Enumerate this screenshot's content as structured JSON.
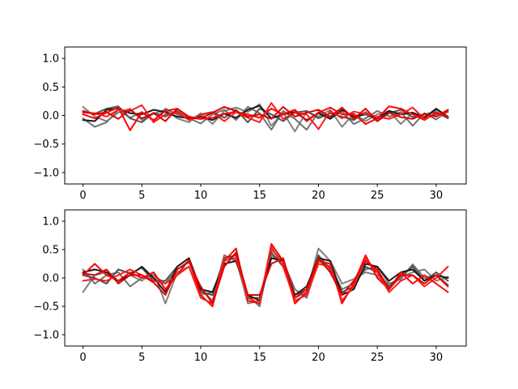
{
  "chart_data": [
    {
      "type": "line",
      "title": "",
      "xlabel": "",
      "ylabel": "",
      "xlim": [
        -1.55,
        32.55
      ],
      "ylim": [
        -1.2,
        1.2
      ],
      "xticks": [
        0,
        5,
        10,
        15,
        20,
        25,
        30
      ],
      "yticks": [
        1.0,
        0.5,
        0.0,
        -0.5,
        -1.0
      ],
      "xtick_labels": [
        "0",
        "5",
        "10",
        "15",
        "20",
        "25",
        "30"
      ],
      "ytick_labels": [
        "1.0",
        "0.5",
        "0.0",
        "−0.5",
        "−1.0"
      ],
      "grid": false,
      "x": [
        0,
        1,
        2,
        3,
        4,
        5,
        6,
        7,
        8,
        9,
        10,
        11,
        12,
        13,
        14,
        15,
        16,
        17,
        18,
        19,
        20,
        21,
        22,
        23,
        24,
        25,
        26,
        27,
        28,
        29,
        30,
        31
      ],
      "series": [
        {
          "color": "#808080",
          "values": [
            0.15,
            -0.02,
            -0.1,
            0.05,
            0.12,
            -0.08,
            0.03,
            0.1,
            -0.05,
            -0.12,
            0.04,
            -0.15,
            0.08,
            0.14,
            0.06,
            0.2,
            -0.18,
            0.05,
            -0.28,
            0.07,
            -0.02,
            0.1,
            -0.2,
            0.03,
            -0.1,
            0.02,
            0.08,
            -0.15,
            0.05,
            -0.02,
            0.1,
            -0.04
          ]
        },
        {
          "color": "#707070",
          "values": [
            -0.05,
            -0.2,
            -0.12,
            0.1,
            -0.04,
            0.06,
            -0.1,
            0.12,
            0.02,
            -0.05,
            -0.14,
            0.02,
            0.1,
            -0.08,
            0.15,
            0.04,
            -0.25,
            0.08,
            -0.06,
            -0.25,
            0.06,
            -0.04,
            0.07,
            -0.15,
            -0.05,
            0.08,
            -0.02,
            0.06,
            -0.18,
            0.04,
            -0.07,
            0.08
          ]
        },
        {
          "color": "#555555",
          "values": [
            0.06,
            0.03,
            0.12,
            0.16,
            -0.05,
            -0.12,
            0.05,
            -0.02,
            0.08,
            -0.08,
            0.02,
            0.06,
            -0.04,
            0.1,
            -0.12,
            0.12,
            0.02,
            -0.1,
            0.05,
            0.08,
            -0.05,
            0.04,
            -0.02,
            -0.08,
            0.06,
            -0.1,
            0.04,
            0.1,
            -0.03,
            0.02,
            0.06,
            -0.05
          ]
        },
        {
          "color": "#1a1a1a",
          "values": [
            -0.08,
            -0.1,
            0.1,
            0.12,
            0.04,
            0.02,
            0.1,
            0.06,
            -0.02,
            -0.05,
            -0.02,
            -0.08,
            0.03,
            -0.04,
            0.1,
            0.17,
            -0.05,
            0.02,
            0.06,
            -0.08,
            0.04,
            -0.06,
            0.1,
            -0.02,
            0.02,
            -0.06,
            0.08,
            0.02,
            0.05,
            -0.04,
            0.12,
            -0.02
          ]
        },
        {
          "color": "#ff0000",
          "values": [
            0.02,
            -0.05,
            0.05,
            0.14,
            -0.26,
            0.06,
            -0.08,
            0.08,
            0.12,
            -0.02,
            -0.06,
            -0.04,
            0.03,
            0.06,
            0.02,
            -0.04,
            0.12,
            0.02,
            0.1,
            -0.1,
            0.05,
            0.14,
            0.02,
            0.03,
            -0.15,
            -0.05,
            0.16,
            0.12,
            0.02,
            -0.08,
            0.05,
            -0.02
          ]
        },
        {
          "color": "#ff1a1a",
          "values": [
            0.05,
            0.04,
            -0.02,
            0.1,
            0.08,
            0.18,
            -0.12,
            0.02,
            0.05,
            -0.08,
            0.01,
            0.05,
            -0.1,
            0.06,
            -0.04,
            -0.12,
            0.22,
            -0.06,
            0.05,
            0.02,
            -0.24,
            0.08,
            -0.05,
            0.07,
            0.02,
            -0.02,
            -0.06,
            0.02,
            0.14,
            -0.06,
            0.02,
            0.06
          ]
        },
        {
          "color": "#e00000",
          "values": [
            0.08,
            0.02,
            0.06,
            -0.06,
            0.1,
            -0.05,
            0.04,
            -0.1,
            0.12,
            -0.04,
            -0.06,
            0.05,
            0.15,
            0.08,
            -0.02,
            0.02,
            -0.06,
            0.15,
            -0.02,
            0.05,
            0.1,
            -0.02,
            0.14,
            -0.06,
            0.12,
            -0.1,
            0.05,
            -0.03,
            -0.06,
            0.03,
            -0.02,
            0.1
          ]
        }
      ]
    },
    {
      "type": "line",
      "title": "",
      "xlabel": "",
      "ylabel": "",
      "xlim": [
        -1.55,
        32.55
      ],
      "ylim": [
        -1.2,
        1.2
      ],
      "xticks": [
        0,
        5,
        10,
        15,
        20,
        25,
        30
      ],
      "yticks": [
        1.0,
        0.5,
        0.0,
        -0.5,
        -1.0
      ],
      "xtick_labels": [
        "0",
        "5",
        "10",
        "15",
        "20",
        "25",
        "30"
      ],
      "ytick_labels": [
        "1.0",
        "0.5",
        "0.0",
        "−0.5",
        "−1.0"
      ],
      "grid": false,
      "x": [
        0,
        1,
        2,
        3,
        4,
        5,
        6,
        7,
        8,
        9,
        10,
        11,
        12,
        13,
        14,
        15,
        16,
        17,
        18,
        19,
        20,
        21,
        22,
        23,
        24,
        25,
        26,
        27,
        28,
        29,
        30,
        31
      ],
      "series": [
        {
          "color": "#808080",
          "values": [
            -0.25,
            0.05,
            0.1,
            -0.08,
            0.05,
            -0.05,
            0.1,
            -0.45,
            0.1,
            0.2,
            -0.3,
            -0.25,
            0.3,
            0.35,
            -0.45,
            -0.4,
            0.4,
            0.25,
            -0.35,
            -0.25,
            0.52,
            0.3,
            -0.1,
            -0.02,
            0.1,
            0.05,
            -0.18,
            0.02,
            0.1,
            0.15,
            -0.05,
            0.02
          ]
        },
        {
          "color": "#6e6e6e",
          "values": [
            0.15,
            -0.1,
            0.05,
            0.1,
            -0.15,
            0.0,
            0.05,
            -0.1,
            0.15,
            0.3,
            -0.2,
            -0.4,
            0.4,
            0.3,
            -0.3,
            -0.5,
            0.5,
            0.3,
            -0.2,
            -0.35,
            0.3,
            0.2,
            -0.2,
            -0.1,
            0.15,
            0.2,
            -0.1,
            -0.02,
            0.24,
            0.0,
            0.05,
            -0.12
          ]
        },
        {
          "color": "#4d4d4d",
          "values": [
            0.05,
            0.0,
            -0.1,
            0.15,
            0.08,
            0.18,
            -0.05,
            -0.05,
            0.2,
            0.35,
            -0.25,
            -0.3,
            0.35,
            0.4,
            -0.35,
            -0.35,
            0.45,
            0.2,
            -0.3,
            -0.2,
            0.4,
            0.15,
            -0.25,
            -0.15,
            0.2,
            0.1,
            -0.15,
            0.05,
            0.2,
            -0.05,
            0.1,
            -0.05
          ]
        },
        {
          "color": "#1a1a1a",
          "values": [
            0.1,
            0.15,
            0.1,
            -0.05,
            0.05,
            0.2,
            0.0,
            -0.25,
            0.2,
            0.35,
            -0.2,
            -0.25,
            0.25,
            0.3,
            -0.3,
            -0.4,
            0.35,
            0.3,
            -0.3,
            -0.15,
            0.35,
            0.3,
            -0.3,
            -0.2,
            0.25,
            0.2,
            -0.05,
            0.1,
            0.15,
            -0.05,
            0.05,
            0.0
          ]
        },
        {
          "color": "#ff0000",
          "values": [
            0.05,
            0.25,
            0.05,
            -0.05,
            0.1,
            0.0,
            0.1,
            -0.2,
            0.05,
            0.32,
            -0.3,
            -0.5,
            0.3,
            0.52,
            -0.4,
            -0.45,
            0.6,
            0.3,
            -0.45,
            -0.25,
            0.3,
            0.25,
            -0.45,
            -0.1,
            0.4,
            0.0,
            -0.2,
            0.1,
            -0.1,
            0.05,
            -0.1,
            -0.25
          ]
        },
        {
          "color": "#ff1a1a",
          "values": [
            -0.05,
            -0.02,
            -0.05,
            0.05,
            0.15,
            0.05,
            -0.05,
            -0.1,
            0.05,
            0.2,
            -0.35,
            -0.45,
            0.35,
            0.35,
            -0.35,
            -0.45,
            0.55,
            0.2,
            -0.4,
            -0.3,
            0.25,
            0.2,
            -0.4,
            -0.15,
            0.35,
            0.1,
            -0.25,
            -0.05,
            0.05,
            -0.15,
            0.0,
            0.2
          ]
        },
        {
          "color": "#e00000",
          "values": [
            0.08,
            0.05,
            0.15,
            -0.1,
            0.05,
            0.05,
            -0.08,
            -0.3,
            0.15,
            0.28,
            -0.15,
            -0.45,
            0.2,
            0.45,
            -0.3,
            -0.3,
            0.25,
            0.35,
            -0.35,
            -0.2,
            0.35,
            0.1,
            -0.3,
            -0.05,
            0.3,
            0.15,
            -0.2,
            0.05,
            0.05,
            -0.1,
            0.05,
            -0.15
          ]
        }
      ]
    }
  ]
}
